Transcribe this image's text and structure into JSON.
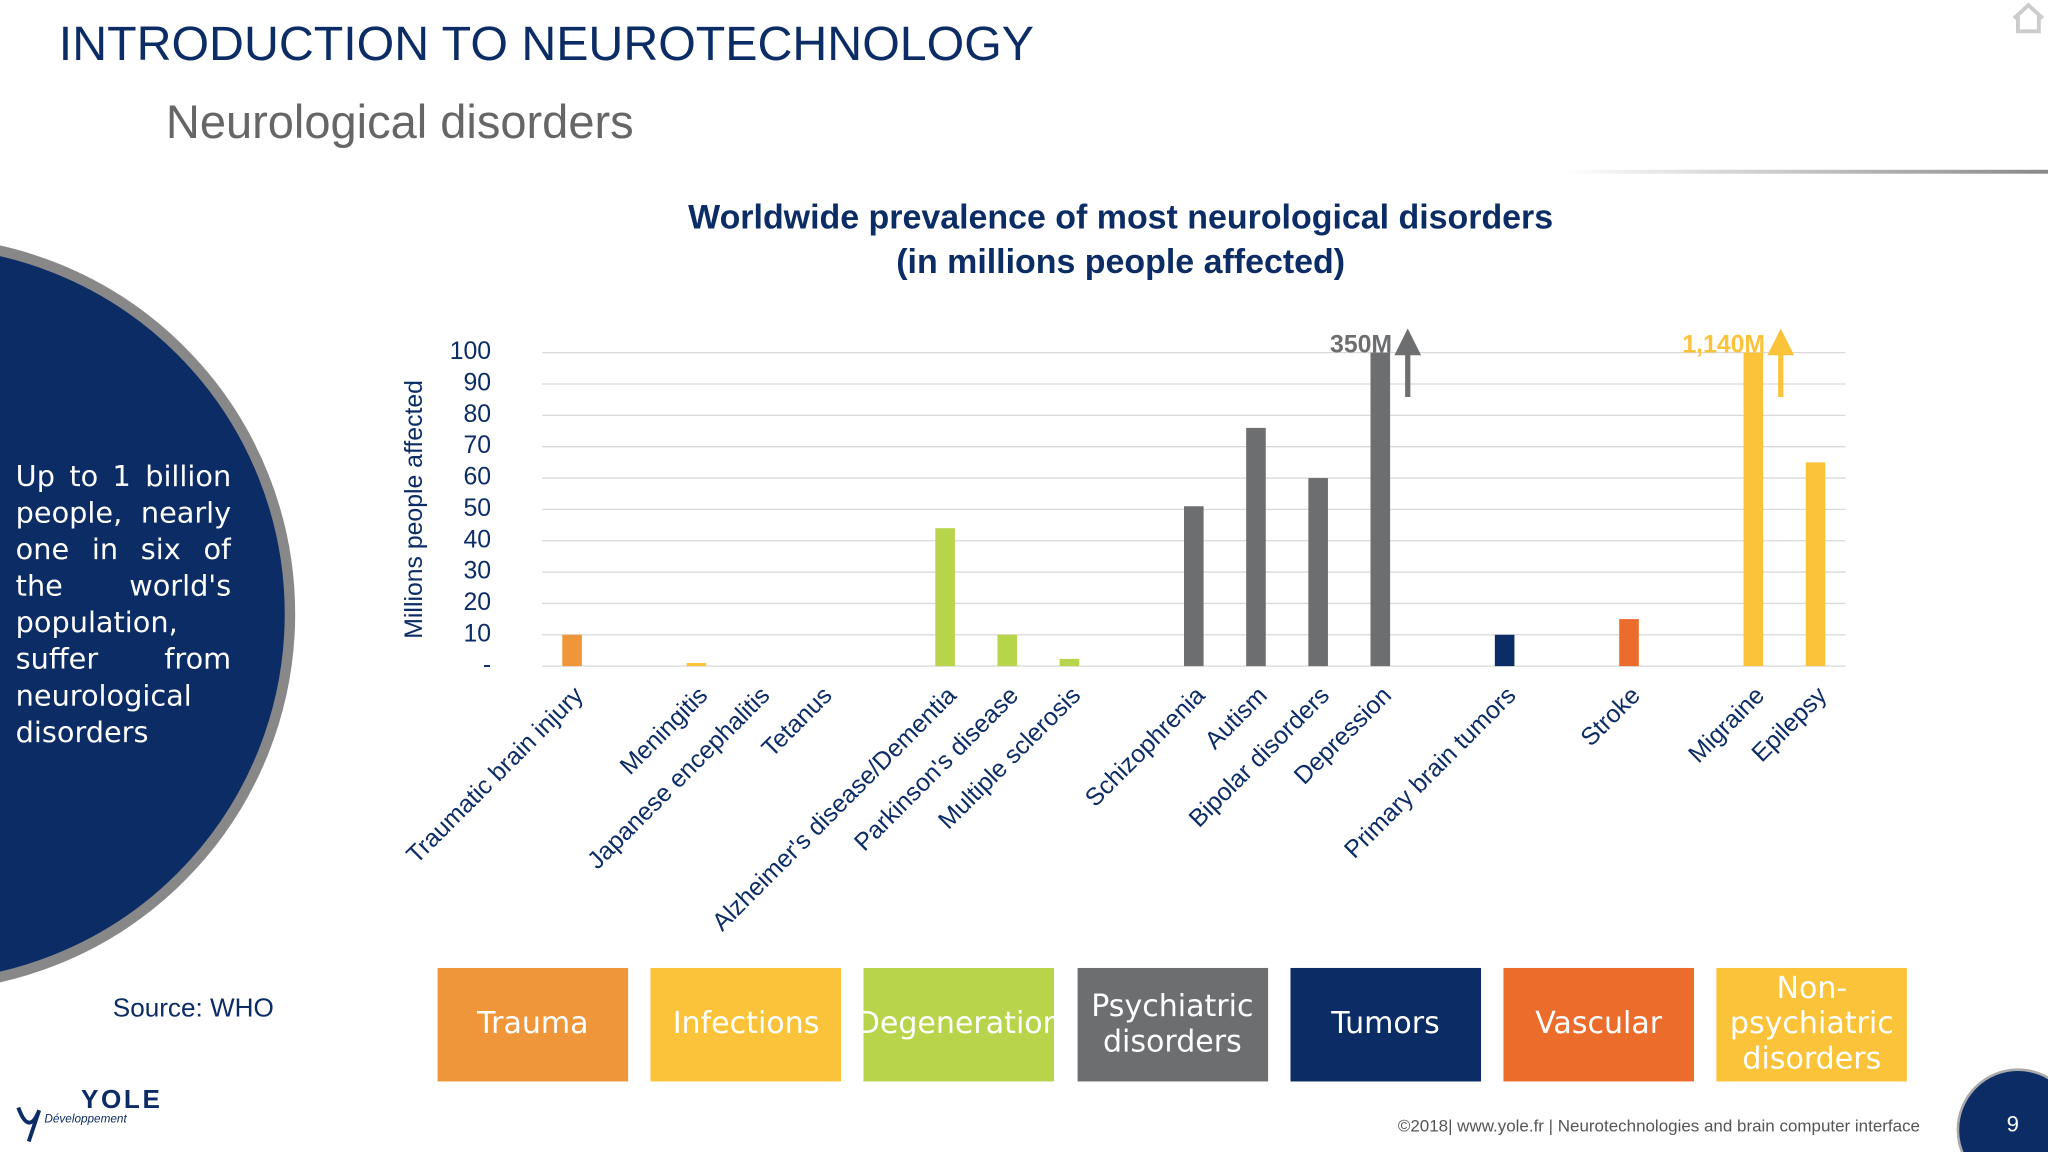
{
  "header": {
    "title": "INTRODUCTION TO NEUROTECHNOLOGY",
    "subtitle": "Neurological disorders"
  },
  "side_note": "Up to 1 billion people, nearly one in six of the world's population, suffer from neurological disorders",
  "source": "Source: WHO",
  "logo": {
    "name": "YOLE",
    "tagline": "Développement"
  },
  "footer": "©2018| www.yole.fr | Neurotechnologies and brain computer interface",
  "page_number": "9",
  "chart_data": {
    "type": "bar",
    "title": [
      "Worldwide prevalence of most neurological disorders",
      "(in millions people affected)"
    ],
    "y_label": "Millions people affected",
    "categories": [
      "Traumatic brain injury",
      null,
      "Meningitis",
      "Japanese encephalitis",
      "Tetanus",
      null,
      "Alzheimer's disease/Dementia",
      "Parkinson's disease",
      "Multiple sclerosis",
      null,
      "Schizophrenia",
      "Autism",
      "Bipolar disorders",
      "Depression",
      null,
      "Primary brain tumors",
      null,
      "Stroke",
      null,
      "Migraine",
      "Epilepsy"
    ],
    "values": [
      10,
      null,
      1,
      0,
      0,
      null,
      44,
      10,
      2.3,
      null,
      51,
      76,
      60,
      350,
      null,
      10,
      null,
      15,
      null,
      1140,
      65
    ],
    "value_labels": [
      null,
      null,
      null,
      null,
      null,
      null,
      null,
      null,
      null,
      null,
      null,
      null,
      null,
      "350M",
      null,
      null,
      null,
      null,
      null,
      "1,140M",
      null
    ],
    "colors": [
      "#f0963a",
      null,
      "#fbc33a",
      "#fbc33a",
      "#fbc33a",
      null,
      "#b8d44a",
      "#b8d44a",
      "#b8d44a",
      null,
      "#6d6e70",
      "#6d6e70",
      "#6d6e70",
      "#6d6e70",
      null,
      "#0c2c66",
      null,
      "#ec6c2c",
      null,
      "#fbc33a",
      "#fbc33a"
    ],
    "ylim": [
      0,
      100
    ],
    "yticks": [
      {
        "value": 0,
        "label": "-"
      },
      10,
      20,
      30,
      40,
      50,
      60,
      70,
      80,
      90,
      100
    ],
    "grid": true,
    "groups": [
      {
        "label": "Trauma",
        "color": "#f0963a"
      },
      {
        "label": "Infections",
        "color": "#fbc33a"
      },
      {
        "label": "Degeneration",
        "color": "#b8d44a"
      },
      {
        "label": "Psychiatric disorders",
        "color": "#6d6e70"
      },
      {
        "label": "Tumors",
        "color": "#0c2c66"
      },
      {
        "label": "Vascular",
        "color": "#ec6c2c"
      },
      {
        "label": "Non-psychiatric disorders",
        "color": "#fbc33a"
      }
    ]
  }
}
